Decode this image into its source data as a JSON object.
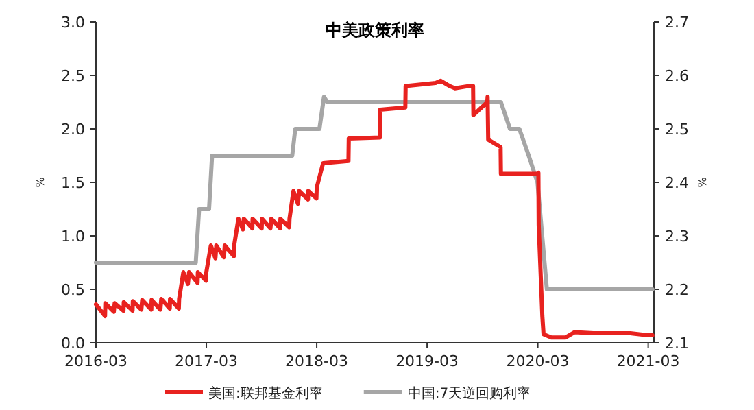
{
  "chart_data": {
    "type": "line",
    "title": "中美政策利率",
    "ylabel": "%",
    "y2label": "%",
    "legend": "bottom",
    "grid": false,
    "xlim": [
      "2016-03-01",
      "2021-03-20"
    ],
    "xticks": [
      "2016-03",
      "2017-03",
      "2018-03",
      "2019-03",
      "2020-03",
      "2021-03"
    ],
    "ylim": [
      0,
      3
    ],
    "yticks": [
      {
        "value": 0,
        "label": "0.0"
      },
      0.5,
      {
        "value": 1,
        "label": "1.0"
      },
      1.5,
      {
        "value": 2,
        "label": "2.0"
      },
      2.5,
      {
        "value": 3,
        "label": "3.0"
      }
    ],
    "y2lim": [
      2.1,
      2.7
    ],
    "y2ticks": [
      2.1,
      2.2,
      2.3,
      2.4,
      2.5,
      2.6,
      2.7
    ],
    "series": [
      {
        "name": "美国:联邦基金利率",
        "color": "#e8221f",
        "x": [
          "2016-03-01",
          "2016-03-31",
          "2016-04-01",
          "2016-04-29",
          "2016-05-02",
          "2016-05-31",
          "2016-06-01",
          "2016-06-30",
          "2016-07-01",
          "2016-07-29",
          "2016-08-01",
          "2016-08-31",
          "2016-09-01",
          "2016-09-30",
          "2016-10-03",
          "2016-10-31",
          "2016-11-01",
          "2016-11-30",
          "2016-12-01",
          "2016-12-15",
          "2016-12-30",
          "2017-01-03",
          "2017-01-31",
          "2017-02-01",
          "2017-02-28",
          "2017-03-01",
          "2017-03-16",
          "2017-03-31",
          "2017-04-03",
          "2017-04-28",
          "2017-05-01",
          "2017-05-31",
          "2017-06-01",
          "2017-06-15",
          "2017-06-30",
          "2017-07-03",
          "2017-07-31",
          "2017-08-01",
          "2017-08-31",
          "2017-09-01",
          "2017-09-29",
          "2017-10-02",
          "2017-10-31",
          "2017-11-01",
          "2017-11-30",
          "2017-12-01",
          "2017-12-14",
          "2017-12-29",
          "2018-01-02",
          "2018-01-31",
          "2018-02-01",
          "2018-02-28",
          "2018-03-01",
          "2018-03-22",
          "2018-06-14",
          "2018-06-15",
          "2018-09-26",
          "2018-09-27",
          "2018-12-19",
          "2018-12-20",
          "2019-03-29",
          "2019-04-15",
          "2019-05-15",
          "2019-06-01",
          "2019-07-15",
          "2019-07-31",
          "2019-08-01",
          "2019-09-16",
          "2019-09-17",
          "2019-09-19",
          "2019-10-30",
          "2019-10-31",
          "2020-02-28",
          "2020-03-03",
          "2020-03-04",
          "2020-03-16",
          "2020-03-20",
          "2020-04-15",
          "2020-06-01",
          "2020-07-01",
          "2020-09-01",
          "2021-01-01",
          "2021-03-01",
          "2021-03-15"
        ],
        "values": [
          0.36,
          0.25,
          0.37,
          0.29,
          0.37,
          0.3,
          0.38,
          0.3,
          0.39,
          0.31,
          0.4,
          0.31,
          0.4,
          0.31,
          0.41,
          0.32,
          0.41,
          0.32,
          0.41,
          0.66,
          0.55,
          0.66,
          0.56,
          0.66,
          0.58,
          0.66,
          0.91,
          0.79,
          0.91,
          0.8,
          0.91,
          0.81,
          0.91,
          1.16,
          1.06,
          1.16,
          1.07,
          1.16,
          1.07,
          1.16,
          1.07,
          1.16,
          1.07,
          1.16,
          1.08,
          1.16,
          1.42,
          1.3,
          1.42,
          1.34,
          1.42,
          1.35,
          1.45,
          1.68,
          1.7,
          1.91,
          1.92,
          2.18,
          2.2,
          2.4,
          2.43,
          2.45,
          2.4,
          2.38,
          2.4,
          2.4,
          2.13,
          2.25,
          2.3,
          1.9,
          1.83,
          1.58,
          1.58,
          1.59,
          1.1,
          0.25,
          0.08,
          0.05,
          0.05,
          0.1,
          0.09,
          0.09,
          0.07,
          0.07
        ]
      },
      {
        "name": "中国:7天逆回购利率",
        "color": "#a6a6a6",
        "axis": "y2",
        "x": [
          "2016-03-01",
          "2017-01-25",
          "2017-02-05",
          "2017-03-10",
          "2017-03-20",
          "2017-12-10",
          "2017-12-20",
          "2018-03-10",
          "2018-03-25",
          "2018-04-05",
          "2019-10-31",
          "2019-11-30",
          "2019-12-31",
          "2020-01-31",
          "2020-02-29",
          "2020-03-31",
          "2021-03-15"
        ],
        "values": [
          2.25,
          2.25,
          2.35,
          2.35,
          2.45,
          2.45,
          2.5,
          2.5,
          2.56,
          2.55,
          2.55,
          2.5,
          2.5,
          2.45,
          2.4,
          2.2,
          2.2
        ]
      }
    ]
  }
}
